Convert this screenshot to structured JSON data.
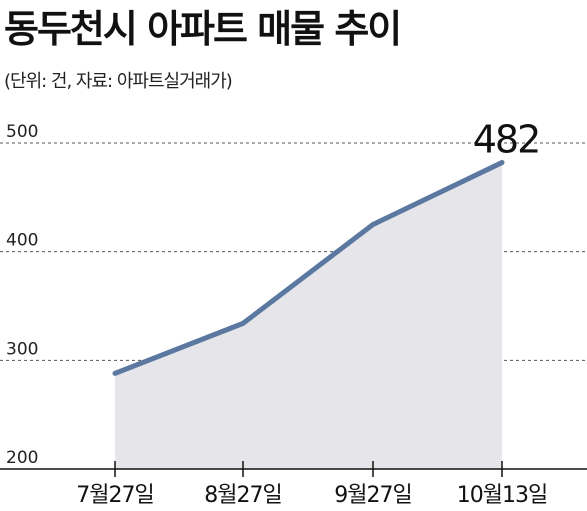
{
  "header": {
    "title": "동두천시 아파트 매물 추이",
    "subtitle": "(단위: 건, 자료: 아파트실거래가)"
  },
  "colors": {
    "line": "#5b78a0",
    "area": "#e6e6ea",
    "grid": "#555555",
    "axis": "#111111"
  },
  "chart_data": {
    "type": "area",
    "categories": [
      "7월27일",
      "8월27일",
      "9월27일",
      "10월13일"
    ],
    "values": [
      288,
      334,
      425,
      482
    ],
    "ylim": [
      200,
      500
    ],
    "yticks": [
      200,
      300,
      400,
      500
    ],
    "grid": true,
    "grid_style": "dashed",
    "data_labels": [
      {
        "index": 3,
        "text": "482"
      }
    ]
  }
}
